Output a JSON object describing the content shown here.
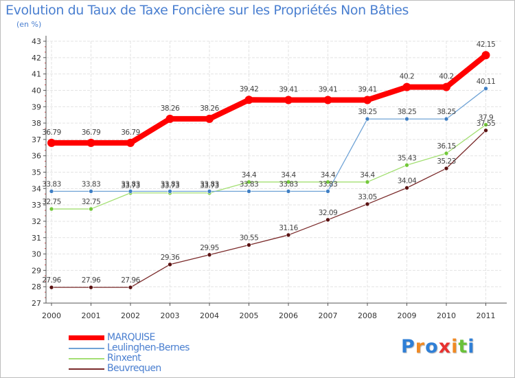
{
  "colors": {
    "grid": "#e3e3e3",
    "axis": "#555555",
    "tick_text": "#333333",
    "value_text": "#444444"
  },
  "chart_data": {
    "type": "line",
    "title": "Evolution du Taux de Taxe Foncière sur les Propriétés Non Bâties",
    "subtitle": "(en %)",
    "xlabel": "",
    "ylabel": "",
    "categories": [
      "2000",
      "2001",
      "2002",
      "2003",
      "2004",
      "2005",
      "2006",
      "2007",
      "2008",
      "2009",
      "2010",
      "2011"
    ],
    "ylim": [
      27,
      43
    ],
    "yticks": [
      "27",
      "28",
      "29",
      "30",
      "31",
      "32",
      "33",
      "34",
      "35",
      "36",
      "37",
      "38",
      "39",
      "40",
      "41",
      "42",
      "43"
    ],
    "grid": true,
    "legend_position": "bottom-left",
    "series": [
      {
        "name": "MARQUISE",
        "color": "#ff0000",
        "thick": true,
        "values": [
          36.79,
          36.79,
          36.79,
          38.26,
          38.26,
          39.42,
          39.41,
          39.41,
          39.41,
          40.2,
          40.2,
          42.15
        ],
        "labels": [
          "36.79",
          "36.79",
          "36.79",
          "38.26",
          "38.26",
          "39.42",
          "39.41",
          "39.41",
          "39.41",
          "40.2",
          "40.2",
          "42.15"
        ]
      },
      {
        "name": "Leulinghen-Bernes",
        "color": "#6fa3d6",
        "marker": "#3f7fc4",
        "values": [
          33.83,
          33.83,
          33.83,
          33.83,
          33.83,
          33.83,
          33.83,
          33.83,
          38.25,
          38.25,
          38.25,
          40.11
        ],
        "labels": [
          "33.83",
          "33.83",
          "33.83",
          "33.83",
          "33.83",
          "33.83",
          "33.83",
          "33.83",
          "38.25",
          "38.25",
          "38.25",
          "40.11"
        ]
      },
      {
        "name": "Rinxent",
        "color": "#a3df72",
        "marker": "#73c83a",
        "values": [
          32.75,
          32.75,
          33.73,
          33.73,
          33.73,
          34.4,
          34.4,
          34.4,
          34.4,
          35.43,
          36.15,
          37.9
        ],
        "labels": [
          "32.75",
          "32.75",
          "33.73",
          "33.73",
          "33.73",
          "34.4",
          "34.4",
          "34.4",
          "34.4",
          "35.43",
          "36.15",
          "37.9"
        ]
      },
      {
        "name": "Beuvrequen",
        "color": "#7a2a2a",
        "marker": "#5a1212",
        "values": [
          27.96,
          27.96,
          27.96,
          29.36,
          29.95,
          30.55,
          31.16,
          32.09,
          33.05,
          34.04,
          35.23,
          37.55
        ],
        "labels": [
          "27.96",
          "27.96",
          "27.96",
          "29.36",
          "29.95",
          "30.55",
          "31.16",
          "32.09",
          "33.05",
          "34.04",
          "35.23",
          "37.55"
        ]
      }
    ]
  },
  "logo": {
    "text": "Proxiti",
    "letters": [
      "P",
      "r",
      "o",
      "x",
      "i",
      "t",
      "i"
    ],
    "colors": [
      "#2f7fd6",
      "#f08a24",
      "#2f7fd6",
      "#e8312f",
      "#f08a24",
      "#6ac13a",
      "#2f7fd6"
    ]
  }
}
